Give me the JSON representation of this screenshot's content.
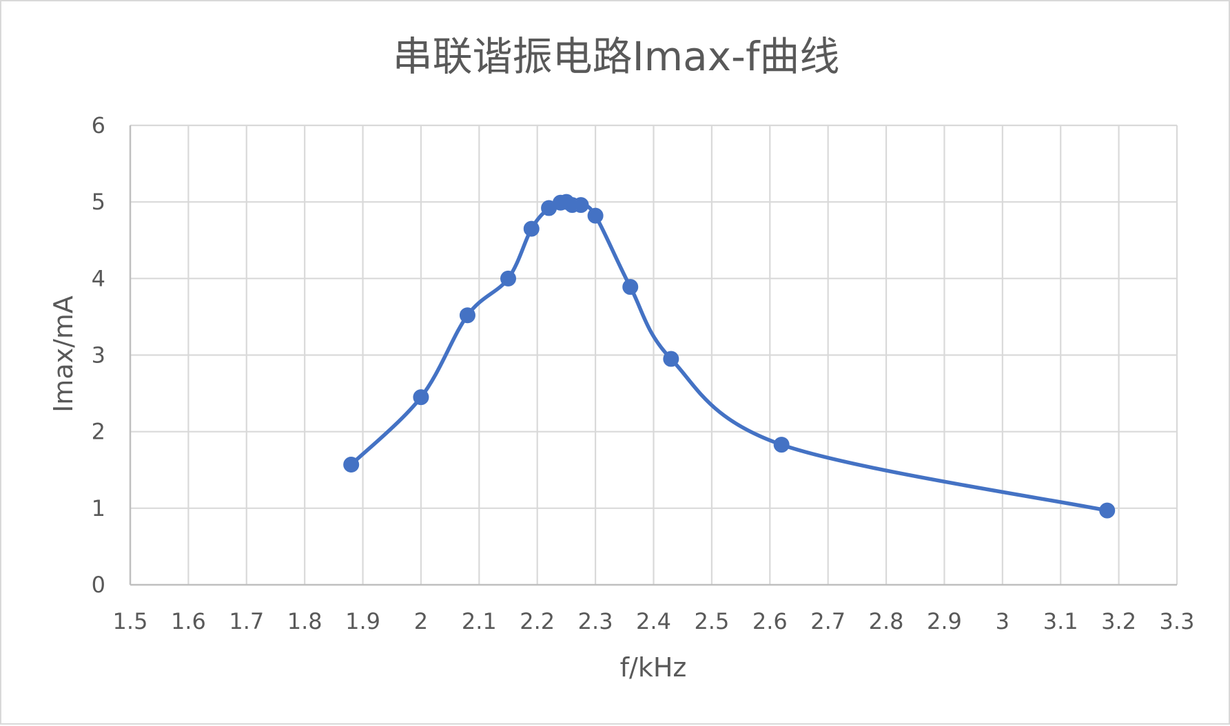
{
  "chart_data": {
    "type": "line",
    "title": "串联谐振电路Imax-f曲线",
    "xlabel": "f/kHz",
    "ylabel": "Imax/mA",
    "xlim": [
      1.5,
      3.3
    ],
    "ylim": [
      0,
      6
    ],
    "x_ticks": [
      "1.5",
      "1.6",
      "1.7",
      "1.8",
      "1.9",
      "2",
      "2.1",
      "2.2",
      "2.3",
      "2.4",
      "2.5",
      "2.6",
      "2.7",
      "2.8",
      "2.9",
      "3",
      "3.1",
      "3.2",
      "3.3"
    ],
    "y_ticks": [
      "0",
      "1",
      "2",
      "3",
      "4",
      "5",
      "6"
    ],
    "grid": true,
    "legend": "none",
    "smooth": true,
    "series": [
      {
        "color": "#4472c4",
        "x": [
          1.88,
          2.0,
          2.08,
          2.15,
          2.19,
          2.22,
          2.24,
          2.25,
          2.26,
          2.275,
          2.3,
          2.36,
          2.43,
          2.62,
          3.18
        ],
        "y": [
          1.57,
          2.45,
          3.52,
          4.0,
          4.65,
          4.92,
          4.99,
          5.0,
          4.96,
          4.96,
          4.82,
          3.89,
          2.95,
          1.83,
          0.97
        ]
      }
    ]
  }
}
